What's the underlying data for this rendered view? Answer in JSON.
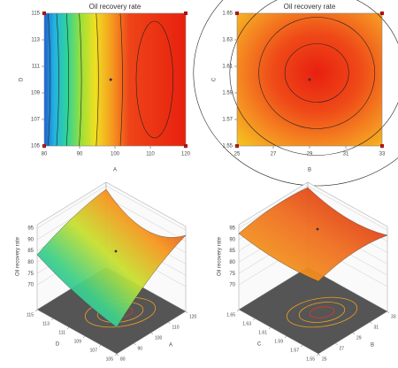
{
  "chart_data": [
    {
      "type": "contour",
      "title": "Oil recovery rate",
      "xlabel": "A",
      "ylabel": "D",
      "xlim": [
        80,
        120
      ],
      "xticks": [
        80,
        90,
        100,
        110,
        120
      ],
      "ylim": [
        105,
        115
      ],
      "yticks": [
        105,
        107,
        109,
        111,
        113,
        115
      ]
    },
    {
      "type": "contour",
      "title": "Oil recovery rate",
      "xlabel": "B",
      "ylabel": "C",
      "xlim": [
        25,
        33
      ],
      "xticks": [
        25,
        27,
        29,
        31,
        33
      ],
      "ylim": [
        1.55,
        1.65
      ],
      "yticks": [
        1.55,
        1.57,
        1.59,
        1.61,
        1.63,
        1.65
      ]
    },
    {
      "type": "surface",
      "zlabel": "Oil recovery rate",
      "xlabel": "A",
      "ylabel": "D",
      "xlim": [
        80,
        120
      ],
      "xticks": [
        80,
        90,
        100,
        110,
        120
      ],
      "ylim": [
        105,
        115
      ],
      "yticks": [
        105,
        107,
        109,
        111,
        113,
        115
      ],
      "zlim": [
        70,
        95
      ],
      "zticks": [
        70,
        75,
        80,
        85,
        90,
        95
      ]
    },
    {
      "type": "surface",
      "zlabel": "Oil recovery rate",
      "xlabel": "B",
      "ylabel": "C",
      "xlim": [
        25,
        33
      ],
      "xticks": [
        25,
        27,
        29,
        31,
        33
      ],
      "ylim": [
        1.55,
        1.65
      ],
      "yticks": [
        1.55,
        1.57,
        1.59,
        1.61,
        1.63,
        1.65
      ],
      "zlim": [
        70,
        95
      ],
      "zticks": [
        70,
        75,
        80,
        85,
        90,
        95
      ]
    }
  ]
}
